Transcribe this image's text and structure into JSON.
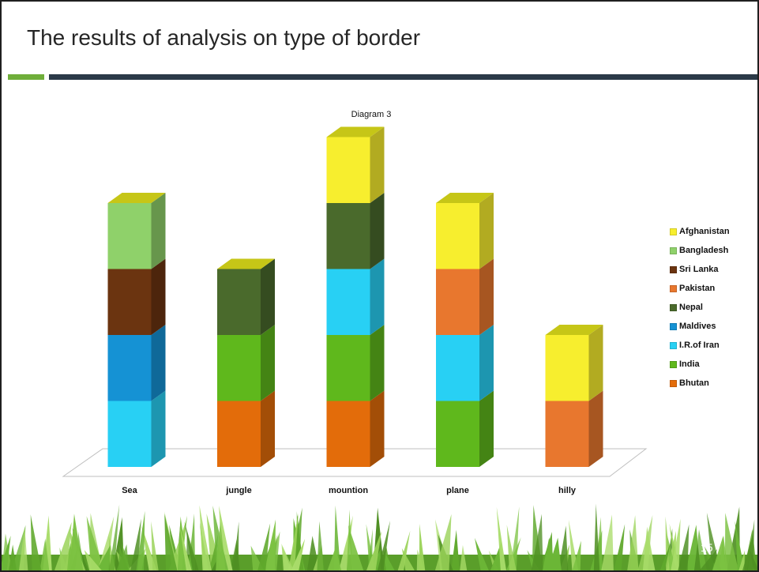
{
  "slide": {
    "title": "The results of analysis on type of border",
    "number": "15"
  },
  "chart_data": {
    "type": "bar",
    "stacked": true,
    "style": "3d",
    "title": "Diagram 3",
    "xlabel": "",
    "ylabel": "",
    "categories": [
      "Sea",
      "jungle",
      "mountion",
      "plane",
      "hilly"
    ],
    "series": [
      {
        "name": "Bhutan",
        "color": "#e36c0a",
        "values": [
          0,
          1,
          1,
          0,
          0
        ]
      },
      {
        "name": "India",
        "color": "#5fb81c",
        "values": [
          0,
          1,
          1,
          1,
          0
        ]
      },
      {
        "name": "I.R.of Iran",
        "color": "#28d0f4",
        "values": [
          1,
          0,
          1,
          1,
          0
        ]
      },
      {
        "name": "Maldives",
        "color": "#1592d4",
        "values": [
          1,
          0,
          0,
          0,
          0
        ]
      },
      {
        "name": "Nepal",
        "color": "#4a6a2c",
        "values": [
          0,
          1,
          1,
          0,
          0
        ]
      },
      {
        "name": "Pakistan",
        "color": "#e8772e",
        "values": [
          0,
          0,
          0,
          1,
          1
        ]
      },
      {
        "name": "Sri Lanka",
        "color": "#6b3410",
        "values": [
          1,
          0,
          0,
          0,
          0
        ]
      },
      {
        "name": "Bangladesh",
        "color": "#8fd16a",
        "values": [
          1,
          0,
          0,
          0,
          0
        ]
      },
      {
        "name": "Afghanistan",
        "color": "#f7ee2e",
        "values": [
          0,
          0,
          1,
          1,
          1
        ]
      }
    ],
    "legend_position": "right",
    "grid": false
  }
}
